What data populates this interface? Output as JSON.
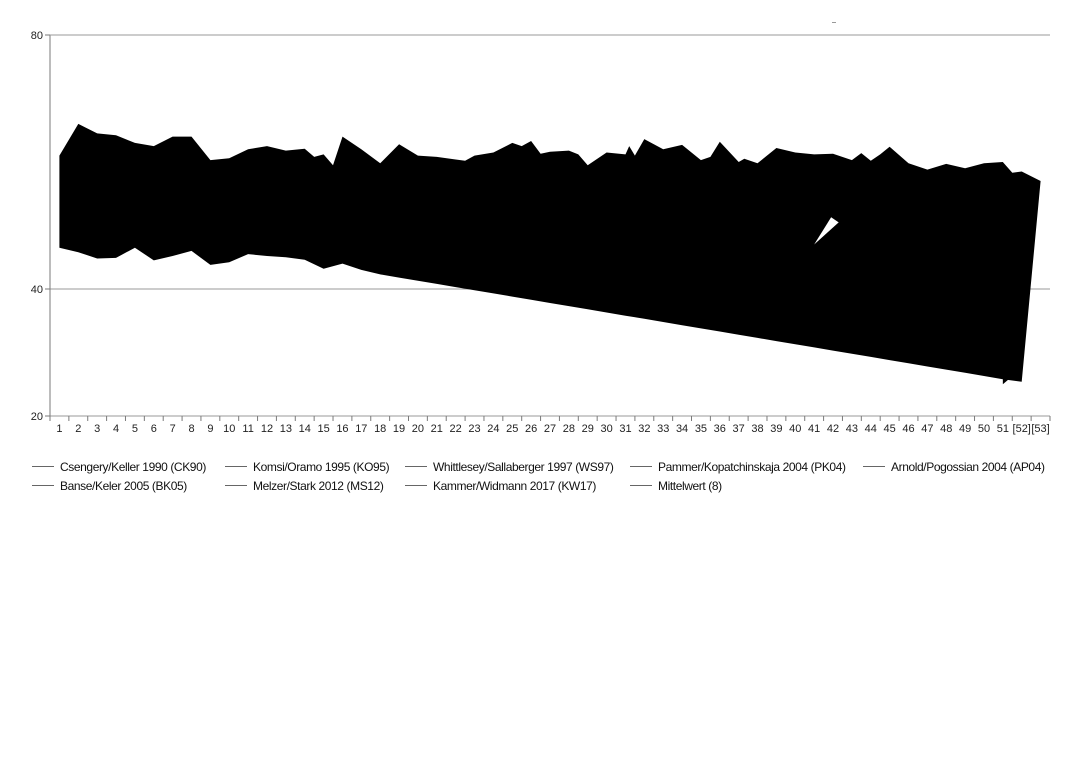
{
  "chart_data": {
    "type": "area",
    "title": "",
    "xlabel": "",
    "ylabel": "",
    "ylim": [
      20,
      80
    ],
    "yticks": [
      20,
      40,
      80
    ],
    "categories": [
      "1",
      "2",
      "3",
      "4",
      "5",
      "6",
      "7",
      "8",
      "9",
      "10",
      "11",
      "12",
      "13",
      "14",
      "15",
      "16",
      "17",
      "18",
      "19",
      "20",
      "21",
      "22",
      "23",
      "24",
      "25",
      "26",
      "27",
      "28",
      "29",
      "30",
      "31",
      "32",
      "33",
      "34",
      "35",
      "36",
      "37",
      "38",
      "39",
      "40",
      "41",
      "42",
      "43",
      "44",
      "45",
      "46",
      "47",
      "48",
      "49",
      "50",
      "51",
      "[52]",
      "[53]"
    ],
    "grid": "horizontal",
    "legend_position": "bottom",
    "series_fill": "#000000",
    "series": [
      {
        "name": "Csengery/Keller 1990 (CK90)"
      },
      {
        "name": "Komsi/Oramo 1995 (KO95)"
      },
      {
        "name": "Whittlesey/Sallaberger 1997 (WS97)"
      },
      {
        "name": "Pammer/Kopatchinskaja 2004 (PK04)"
      },
      {
        "name": "Arnold/Pogossian 2004 (AP04)"
      },
      {
        "name": "Banse/Keler 2005 (BK05)"
      },
      {
        "name": "Melzer/Stark 2012 (MS12)"
      },
      {
        "name": "Kammer/Widmann 2017 (KW17)"
      },
      {
        "name": "Mittelwert (8)"
      }
    ],
    "upper": [
      [
        1,
        61
      ],
      [
        2,
        66
      ],
      [
        3,
        64.5
      ],
      [
        4,
        64.2
      ],
      [
        5,
        63
      ],
      [
        6,
        62.5
      ],
      [
        7,
        64
      ],
      [
        8,
        64
      ],
      [
        9,
        60.3
      ],
      [
        10,
        60.6
      ],
      [
        11,
        62
      ],
      [
        12,
        62.5
      ],
      [
        13,
        61.8
      ],
      [
        14,
        62.1
      ],
      [
        14.5,
        60.8
      ],
      [
        15,
        61.2
      ],
      [
        15.5,
        59.5
      ],
      [
        16,
        64
      ],
      [
        17,
        62
      ],
      [
        18,
        59.8
      ],
      [
        19,
        62.8
      ],
      [
        20,
        61
      ],
      [
        21,
        60.8
      ],
      [
        22,
        60.4
      ],
      [
        22.5,
        60.2
      ],
      [
        23,
        61
      ],
      [
        24,
        61.5
      ],
      [
        25,
        63
      ],
      [
        25.5,
        62.5
      ],
      [
        26,
        63.3
      ],
      [
        26.5,
        61.3
      ],
      [
        27,
        61.6
      ],
      [
        28,
        61.8
      ],
      [
        28.5,
        61.2
      ],
      [
        29,
        59.5
      ],
      [
        30,
        61.5
      ],
      [
        31,
        61.2
      ],
      [
        31.2,
        62.5
      ],
      [
        31.5,
        61
      ],
      [
        32,
        63.6
      ],
      [
        33,
        62
      ],
      [
        34,
        62.7
      ],
      [
        35,
        60.3
      ],
      [
        35.5,
        60.8
      ],
      [
        36,
        63.2
      ],
      [
        37,
        60
      ],
      [
        37.3,
        60.5
      ],
      [
        38,
        59.8
      ],
      [
        39,
        62.2
      ],
      [
        40,
        61.5
      ],
      [
        41,
        61.2
      ],
      [
        42,
        61.3
      ],
      [
        43,
        60.3
      ],
      [
        43.5,
        61.4
      ],
      [
        44,
        60.2
      ],
      [
        44.5,
        61.2
      ],
      [
        45,
        62.4
      ],
      [
        46,
        59.8
      ],
      [
        47,
        58.8
      ],
      [
        48,
        59.7
      ],
      [
        49,
        59
      ],
      [
        50,
        59.8
      ],
      [
        51,
        60
      ],
      [
        51.5,
        58.3
      ],
      [
        52,
        58.5
      ],
      [
        53,
        57
      ]
    ],
    "lower": [
      [
        1,
        46.5
      ],
      [
        2,
        45.8
      ],
      [
        3,
        44.8
      ],
      [
        4,
        44.9
      ],
      [
        5,
        46.5
      ],
      [
        6,
        44.5
      ],
      [
        7,
        45.2
      ],
      [
        8,
        46
      ],
      [
        9,
        43.8
      ],
      [
        10,
        44.2
      ],
      [
        11,
        45.5
      ],
      [
        12,
        45.2
      ],
      [
        13,
        45
      ],
      [
        14,
        44.6
      ],
      [
        15,
        43.2
      ],
      [
        16,
        44
      ],
      [
        17,
        43
      ],
      [
        18,
        42.3
      ],
      [
        19,
        41.8
      ],
      [
        20,
        41.3
      ],
      [
        21,
        40.8
      ],
      [
        22,
        40.3
      ],
      [
        23,
        39.8
      ],
      [
        24,
        39.3
      ],
      [
        25,
        38.8
      ],
      [
        26,
        38.3
      ],
      [
        27,
        37.8
      ],
      [
        28,
        37.3
      ],
      [
        29,
        36.8
      ],
      [
        30,
        36.3
      ],
      [
        31,
        35.8
      ],
      [
        32,
        35.3
      ],
      [
        33,
        34.8
      ],
      [
        34,
        34.3
      ],
      [
        35,
        33.8
      ],
      [
        36,
        33.3
      ],
      [
        37,
        32.8
      ],
      [
        38,
        32.3
      ],
      [
        39,
        31.8
      ],
      [
        40,
        31.3
      ],
      [
        41,
        30.8
      ],
      [
        42,
        30.3
      ],
      [
        43,
        29.8
      ],
      [
        44,
        29.3
      ],
      [
        45,
        28.8
      ],
      [
        46,
        28.3
      ],
      [
        47,
        27.8
      ],
      [
        48,
        27.3
      ],
      [
        49,
        26.8
      ],
      [
        50,
        26.3
      ],
      [
        51,
        25.8
      ],
      [
        52,
        25.4
      ]
    ]
  }
}
